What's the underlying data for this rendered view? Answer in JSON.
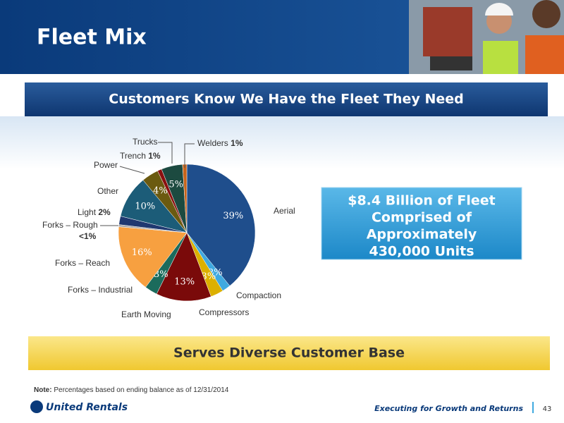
{
  "header": {
    "title": "Fleet Mix"
  },
  "banner": "Customers Know We Have the Fleet They Need",
  "callout": [
    "$8.4 Billion of Fleet",
    "Comprised of",
    "Approximately",
    "430,000 Units"
  ],
  "footer_banner": "Serves Diverse Customer Base",
  "note": {
    "label": "Note:",
    "text": "Percentages based on ending balance as of 12/31/2014"
  },
  "logo": "United Rentals",
  "tagline": "Executing for Growth and Returns",
  "page_number": "43",
  "chart_data": {
    "type": "pie",
    "categories": [
      "Aerial",
      "Compaction",
      "Compressors",
      "Earth Moving",
      "Forks – Industrial",
      "Forks – Reach",
      "Forks – Rough",
      "Light",
      "Other",
      "Power",
      "Trench",
      "Trucks",
      "Welders"
    ],
    "values": [
      39,
      2,
      3,
      13,
      3,
      16,
      0.5,
      2,
      10,
      4,
      1,
      5,
      1
    ],
    "value_labels": [
      "39%",
      "2%",
      "3%",
      "13%",
      "3%",
      "16%",
      "<1%",
      "2%",
      "10%",
      "4%",
      "1%",
      "5%",
      "1%"
    ],
    "colors": [
      "#1f4e8c",
      "#3fa9e0",
      "#dcb000",
      "#7a0a0a",
      "#1b6b5c",
      "#f7a040",
      "#a8a8a8",
      "#1f3870",
      "#1c5c78",
      "#6b5a10",
      "#8a1010",
      "#1c4a40",
      "#c8641a"
    ]
  }
}
